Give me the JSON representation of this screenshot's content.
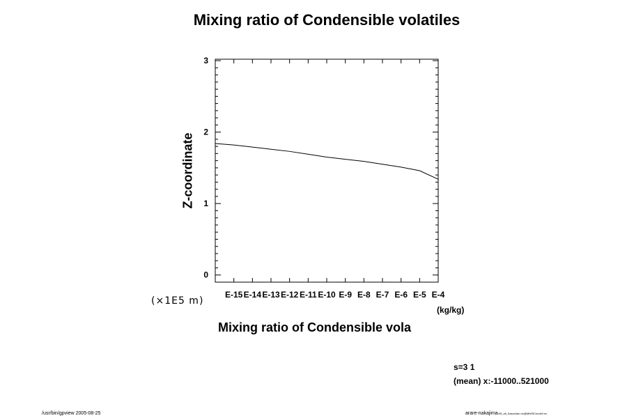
{
  "chart_data": {
    "type": "line",
    "title": "Mixing ratio of Condensible volatiles",
    "xlabel": "Mixing ratio of Condensible vola",
    "ylabel": "Z-coordinate",
    "x_scale": "log",
    "x_unit": "(kg/kg)",
    "y_scale_note": "(×1E5 m)",
    "xlim": [
      1e-16,
      0.0001
    ],
    "ylim": [
      -0.1,
      3.02
    ],
    "x_tick_labels": [
      "E-15",
      "E-14",
      "E-13",
      "E-12",
      "E-11",
      "E-10",
      "E-9",
      "E-8",
      "E-7",
      "E-6",
      "E-5",
      "E-4"
    ],
    "y_tick_labels": [
      "0",
      "1",
      "2",
      "3"
    ],
    "y_ticks": [
      0,
      1,
      2,
      3
    ],
    "series": [
      {
        "x": [
          1e-16,
          1e-15,
          1e-14,
          1e-13,
          1e-12,
          1e-11,
          1e-10,
          1e-09,
          1e-08,
          1e-07,
          1e-06,
          1e-05,
          0.0001
        ],
        "y": [
          1.84,
          1.82,
          1.79,
          1.76,
          1.73,
          1.69,
          1.65,
          1.62,
          1.59,
          1.55,
          1.51,
          1.46,
          1.34
        ]
      }
    ]
  },
  "info": {
    "s_line": "s=3 1",
    "mean_line": "(mean) x:-11000..521000"
  },
  "footer": {
    "left": "/usr/bin/gpview 2005-08-25",
    "right_main": "arare-nakajima",
    "right_small": "/05_all_Kasuchan.nc@MixRtCondv0.nc"
  }
}
